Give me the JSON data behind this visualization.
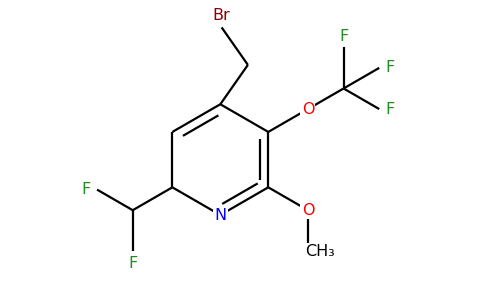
{
  "background_color": "#ffffff",
  "bond_color": "#000000",
  "atom_colors": {
    "Br": "#8B0000",
    "N": "#0000FF",
    "O": "#FF0000",
    "F": "#228B22",
    "C": "#000000"
  },
  "figsize": [
    4.84,
    3.0
  ],
  "dpi": 100,
  "lw": 1.6,
  "fs": 11.5
}
